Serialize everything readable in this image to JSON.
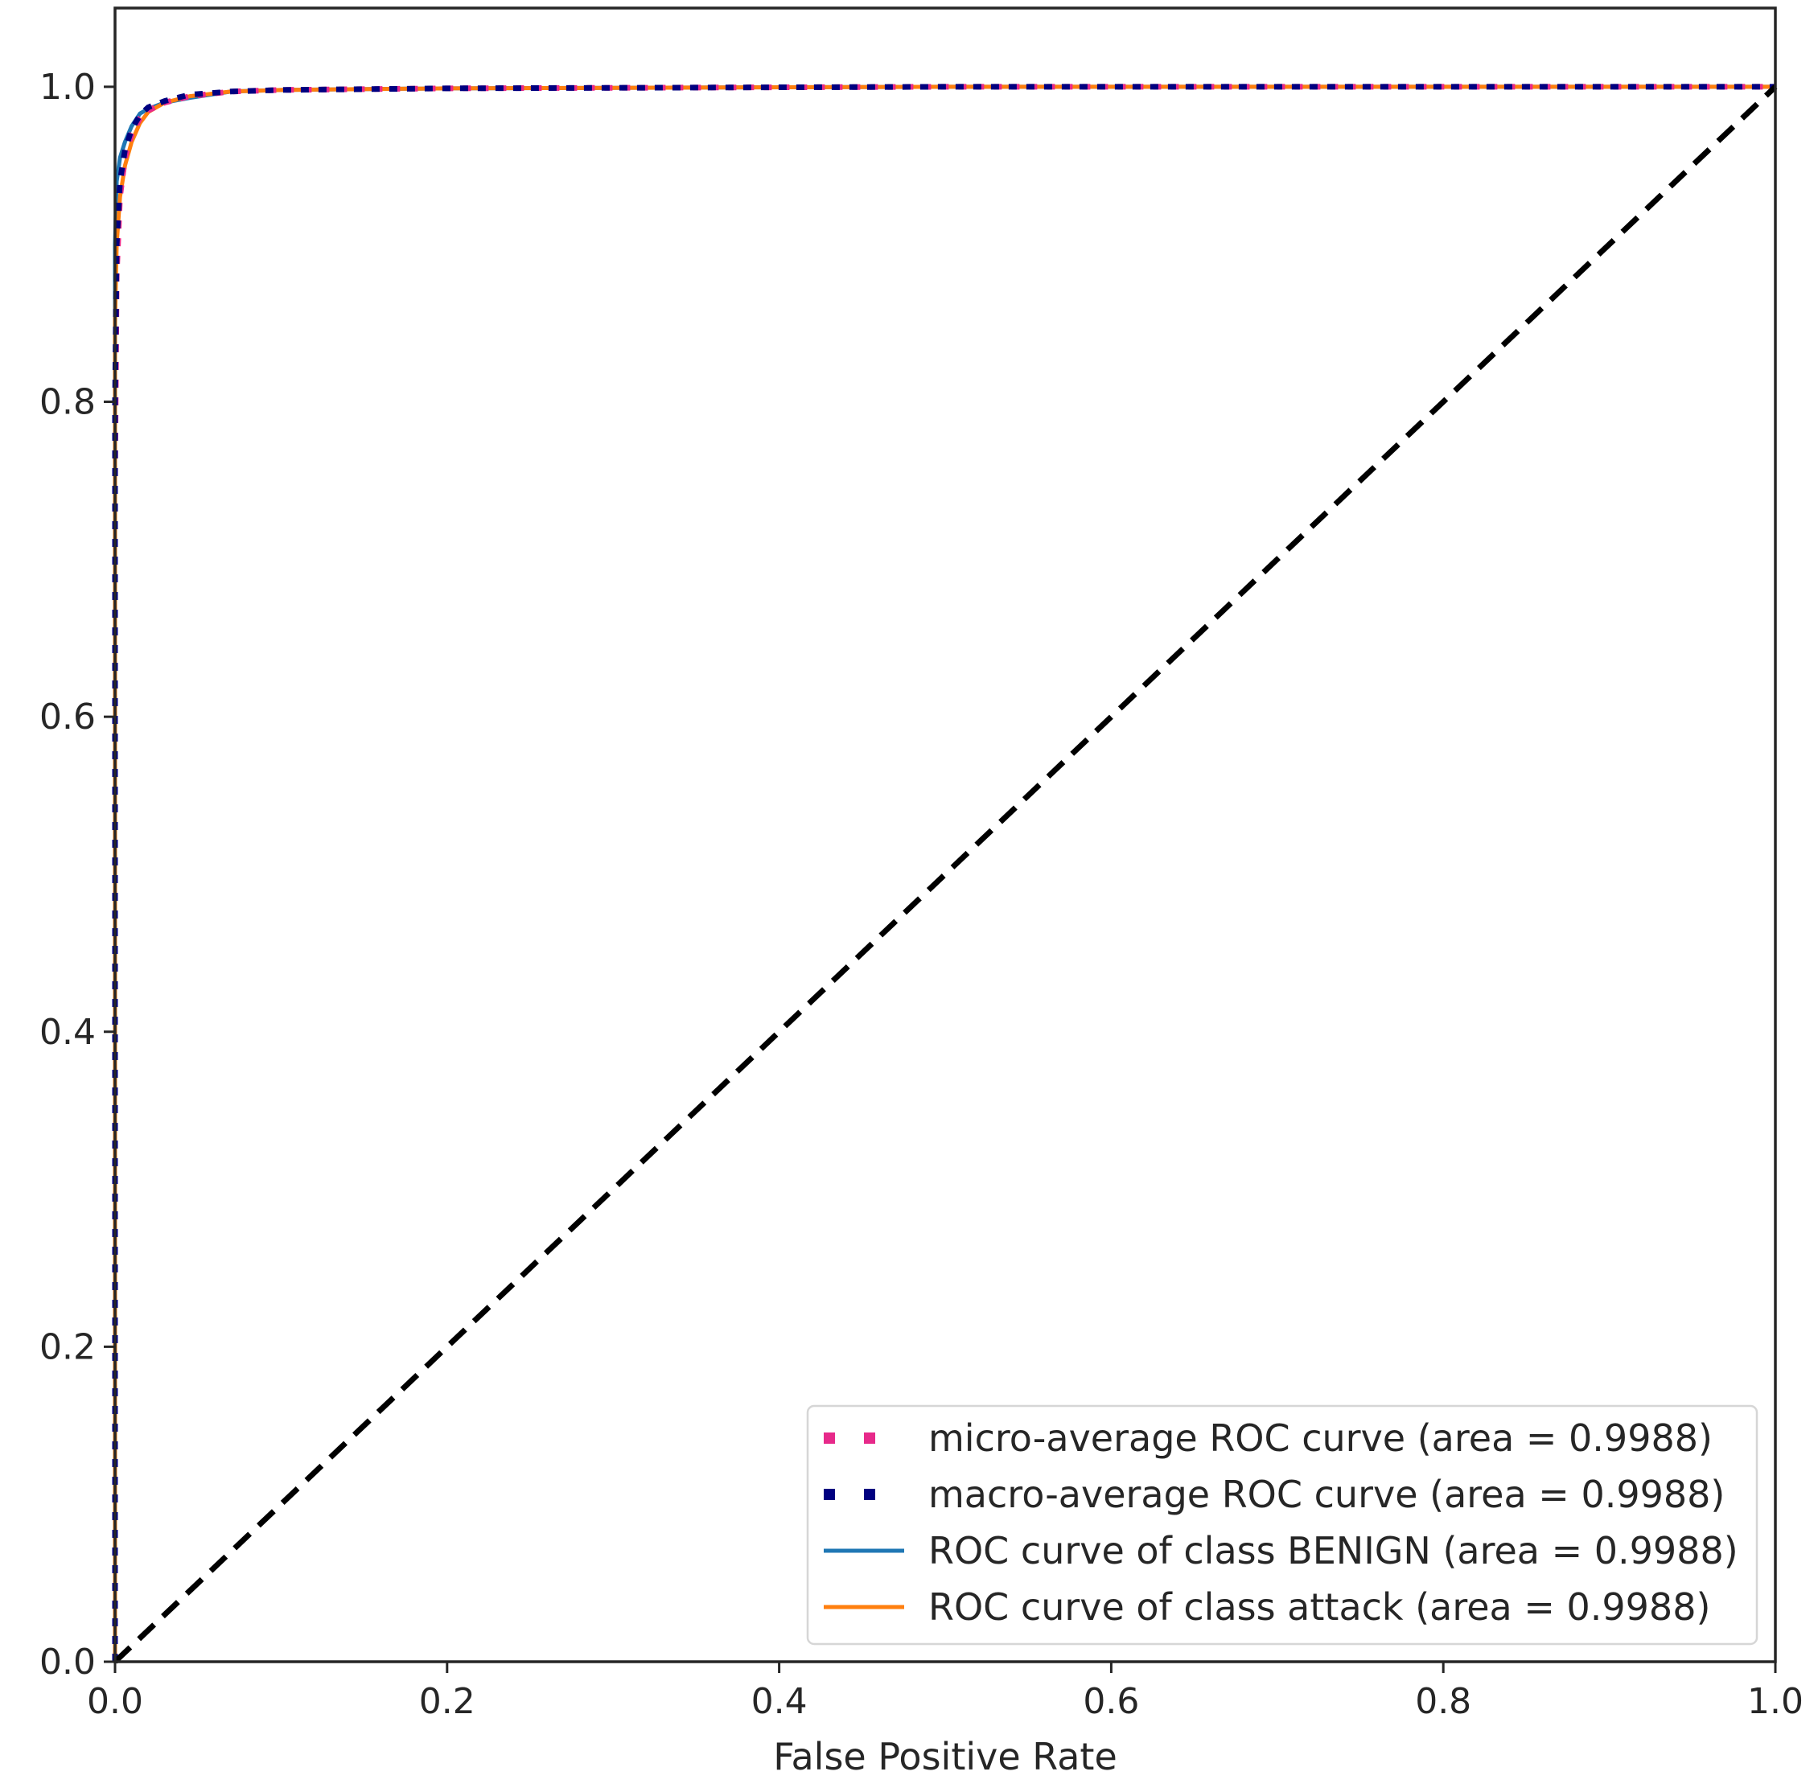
{
  "chart_data": {
    "type": "line",
    "title": "",
    "xlabel": "False Positive Rate",
    "ylabel": "",
    "xlim": [
      0.0,
      1.0
    ],
    "ylim": [
      0.0,
      1.05
    ],
    "x_ticks": [
      "0.0",
      "0.2",
      "0.4",
      "0.6",
      "0.8",
      "1.0"
    ],
    "y_ticks": [
      "0.0",
      "0.2",
      "0.4",
      "0.6",
      "0.8",
      "1.0"
    ],
    "grid": false,
    "legend_position": "lower-right",
    "series": [
      {
        "name": "micro-average ROC curve (area = 0.9988)",
        "color": "#e7298a",
        "style": "dotted",
        "x": [
          0.0,
          0.0,
          0.001,
          0.003,
          0.006,
          0.01,
          0.015,
          0.02,
          0.03,
          0.045,
          0.07,
          0.1,
          0.2,
          0.5,
          1.0
        ],
        "y": [
          0.0,
          0.75,
          0.88,
          0.93,
          0.955,
          0.97,
          0.98,
          0.985,
          0.99,
          0.994,
          0.997,
          0.998,
          0.999,
          1.0,
          1.0
        ]
      },
      {
        "name": "macro-average ROC curve (area = 0.9988)",
        "color": "#000080",
        "style": "dotted",
        "x": [
          0.0,
          0.0,
          0.001,
          0.003,
          0.006,
          0.01,
          0.015,
          0.02,
          0.03,
          0.045,
          0.07,
          0.1,
          0.2,
          0.5,
          1.0
        ],
        "y": [
          0.0,
          0.8,
          0.9,
          0.94,
          0.96,
          0.973,
          0.982,
          0.987,
          0.991,
          0.995,
          0.997,
          0.998,
          0.999,
          1.0,
          1.0
        ]
      },
      {
        "name": "ROC curve of class BENIGN (area = 0.9988)",
        "color": "#1f77b4",
        "style": "solid",
        "x": [
          0.0,
          0.0,
          0.001,
          0.003,
          0.006,
          0.01,
          0.015,
          0.02,
          0.03,
          0.045,
          0.07,
          0.1,
          0.2,
          0.5,
          1.0
        ],
        "y": [
          0.0,
          0.9,
          0.94,
          0.955,
          0.965,
          0.975,
          0.983,
          0.986,
          0.99,
          0.993,
          0.997,
          0.998,
          0.999,
          1.0,
          1.0
        ]
      },
      {
        "name": "ROC curve of class attack (area = 0.9988)",
        "color": "#ff7f0e",
        "style": "solid",
        "x": [
          0.0,
          0.0,
          0.001,
          0.003,
          0.006,
          0.01,
          0.015,
          0.02,
          0.03,
          0.045,
          0.07,
          0.1,
          0.2,
          0.5,
          1.0
        ],
        "y": [
          0.0,
          0.85,
          0.9,
          0.93,
          0.95,
          0.965,
          0.977,
          0.984,
          0.99,
          0.994,
          0.997,
          0.998,
          0.999,
          1.0,
          1.0
        ]
      }
    ],
    "reference_line": {
      "x": [
        0.0,
        1.0
      ],
      "y": [
        0.0,
        1.0
      ],
      "color": "#000000",
      "style": "dashed"
    }
  }
}
